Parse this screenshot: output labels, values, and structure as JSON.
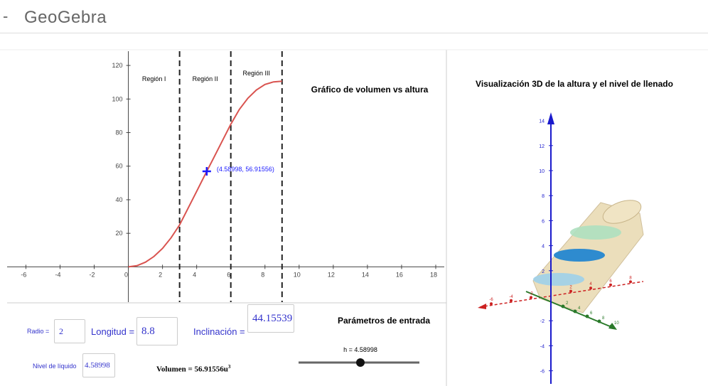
{
  "header": {
    "logo": "GeoGebra"
  },
  "chart_data": {
    "type": "line",
    "title": "Gráfico de volumen vs altura",
    "x": [
      0,
      0.5,
      1,
      1.5,
      2,
      2.5,
      3,
      3.5,
      4,
      4.5,
      5,
      5.5,
      6,
      6.5,
      7,
      7.5,
      8,
      8.5,
      9
    ],
    "values": [
      0,
      0.7,
      2.8,
      6.2,
      11,
      17.3,
      25,
      35,
      45,
      55.1,
      65,
      75,
      85,
      93.8,
      100.5,
      105.4,
      108.7,
      110.2,
      110.6
    ],
    "color": "#d9534f",
    "xlim": [
      -7.1,
      18.5
    ],
    "ylim": [
      -21,
      128.5
    ],
    "xticks": [
      -6,
      -4,
      -2,
      0,
      2,
      4,
      6,
      8,
      10,
      12,
      14,
      16,
      18
    ],
    "yticks": [
      20,
      40,
      60,
      80,
      100,
      120
    ],
    "regions": [
      {
        "x": 3,
        "label": "Región I"
      },
      {
        "x": 6,
        "label": "Región II"
      },
      {
        "x": 9,
        "label": "Región III"
      }
    ],
    "point": {
      "x": 4.58998,
      "y": 56.91556,
      "label": "(4.58998, 56.91556)",
      "color": "#1a1aff"
    }
  },
  "panel3d": {
    "title": "Visualización 3D de la altura y el nivel de llenado",
    "z_ticks": [
      -6,
      -4,
      -2,
      2,
      4,
      6,
      8,
      10,
      12,
      14
    ],
    "x_ticks": [
      -6,
      -4,
      -2,
      2,
      4,
      6,
      8
    ],
    "y_ticks": [
      2,
      4,
      6,
      8,
      10
    ]
  },
  "inputs": {
    "title": "Parámetros de entrada",
    "radio": {
      "label": "Radio =",
      "value": "2"
    },
    "longitud": {
      "label": "Longitud =",
      "value": "8.8"
    },
    "inclinacion": {
      "label": "Inclinación =",
      "value": "44.15539"
    },
    "nivel": {
      "label": "Nivel de líquido",
      "value": "4.58998"
    },
    "volumen": {
      "label": "Volumen =",
      "value": "56.91556",
      "unit": "u",
      "exp": "3"
    },
    "slider": {
      "label": "h = 4.58998"
    }
  }
}
